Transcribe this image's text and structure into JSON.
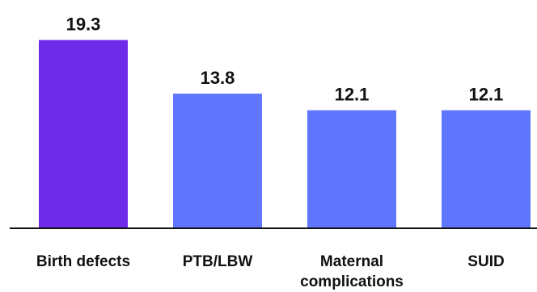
{
  "chart_data": {
    "type": "bar",
    "categories": [
      "Birth defects",
      "PTB/LBW",
      "Maternal complications",
      "SUID"
    ],
    "category_lines": [
      [
        "Birth defects"
      ],
      [
        "PTB/LBW"
      ],
      [
        "Maternal",
        "complications"
      ],
      [
        "SUID"
      ]
    ],
    "values": [
      19.3,
      13.8,
      12.1,
      12.1
    ],
    "value_labels": [
      "19.3",
      "13.8",
      "12.1",
      "12.1"
    ],
    "bar_colors": [
      "#6f2ce8",
      "#6176ff",
      "#6176ff",
      "#6176ff"
    ],
    "title": "",
    "xlabel": "",
    "ylabel": "",
    "ylim": [
      0,
      23.4
    ],
    "grid": false,
    "legend": "none"
  }
}
